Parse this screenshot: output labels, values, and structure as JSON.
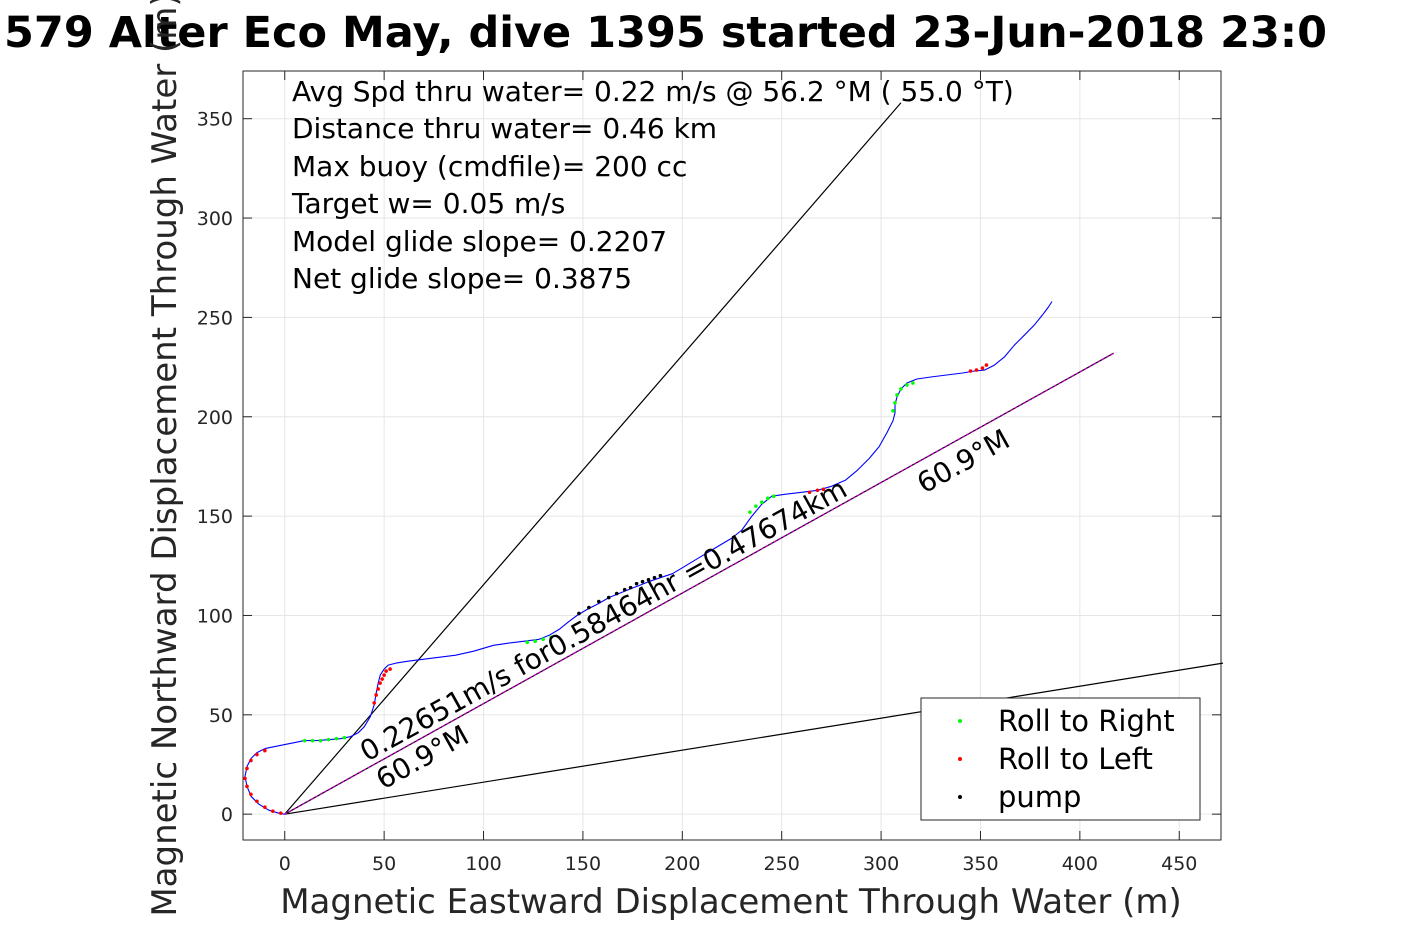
{
  "chart_data": {
    "type": "line",
    "title": "579 Alter Eco May, dive 1395 started 23-Jun-2018 23:0",
    "xlabel": "Magnetic Eastward Displacement Through Water (m)",
    "ylabel": "Magnetic Northward Displacement Through Water (m)",
    "xlim": [
      -21,
      471
    ],
    "ylim": [
      -13,
      374
    ],
    "xticks": [
      0,
      50,
      100,
      150,
      200,
      250,
      300,
      350,
      400,
      450
    ],
    "yticks": [
      0,
      50,
      100,
      150,
      200,
      250,
      300,
      350
    ],
    "grid": true,
    "legend_position": "bottom-right",
    "annotations": [
      "Avg Spd thru water=  0.22 m/s @  56.2 °M ( 55.0 °T)",
      "Distance thru water=  0.46 km",
      "Max buoy (cmdfile)= 200 cc",
      "Target w= 0.05 m/s",
      "Model glide slope= 0.2207",
      "Net glide slope= 0.3875"
    ],
    "line_labels": {
      "speed_label": "0.22651m/s for0.58464hr =0.47674km",
      "heading_label_start": "60.9°M",
      "heading_label_end": "60.9°M"
    },
    "legend": [
      {
        "label": "Roll to Right",
        "color": "#00ff00"
      },
      {
        "label": "Roll to Left",
        "color": "#ff0000"
      },
      {
        "label": "pump",
        "color": "#000000"
      }
    ],
    "reference_lines": [
      {
        "x": [
          0,
          310
        ],
        "y": [
          0,
          358
        ]
      },
      {
        "x": [
          0,
          472
        ],
        "y": [
          0,
          76
        ]
      }
    ],
    "net_track": {
      "x": [
        0,
        417
      ],
      "y": [
        0,
        232
      ],
      "color": "#c000c0"
    },
    "series": [
      {
        "color": "#0000ff",
        "x": [
          0,
          -3,
          -8,
          -13,
          -17,
          -19,
          -20,
          -19,
          -17,
          -14,
          -10,
          -5,
          0,
          5,
          10,
          16,
          22,
          28,
          33,
          37,
          40,
          43,
          45,
          46,
          47,
          48,
          50,
          52,
          56,
          62,
          70,
          78,
          86,
          95,
          105,
          112,
          120,
          128,
          133,
          138,
          143,
          147,
          152,
          158,
          163,
          168,
          173,
          178,
          183,
          189,
          195,
          200,
          205,
          210,
          215,
          220,
          225,
          230,
          235,
          240,
          245,
          252,
          260,
          268,
          275,
          282,
          288,
          294,
          299,
          303,
          306,
          307,
          307,
          308,
          310,
          313,
          318,
          325,
          333,
          341,
          347,
          352,
          357,
          362,
          367,
          372,
          377,
          381,
          384,
          386
        ],
        "y": [
          0,
          0.5,
          2,
          5,
          9,
          14,
          19,
          24,
          28,
          31,
          33,
          34,
          35,
          36,
          37,
          37,
          37.5,
          38,
          39,
          41,
          44,
          49,
          55,
          61,
          66,
          70,
          73,
          75,
          76,
          77,
          78,
          79,
          80,
          82,
          85,
          86,
          87,
          88,
          90,
          93,
          97,
          100,
          103,
          106,
          109,
          111,
          113,
          115,
          117,
          119,
          121,
          124,
          127,
          130,
          133,
          136,
          139,
          143,
          150,
          156,
          160,
          161,
          162,
          163,
          165,
          168,
          173,
          179,
          185,
          192,
          198,
          202,
          206,
          210,
          214,
          217,
          219,
          220,
          221,
          222,
          223,
          223.5,
          226,
          230,
          236,
          241,
          246,
          251,
          255,
          258
        ]
      }
    ],
    "markers": [
      {
        "name": "Roll to Right",
        "color": "#00ff00",
        "x": [
          10,
          14,
          18,
          22,
          26,
          30,
          122,
          126,
          130,
          134,
          234,
          237,
          240,
          243,
          246,
          306,
          307,
          308,
          310,
          313,
          316
        ],
        "y": [
          37,
          37,
          37,
          37.5,
          38,
          38.5,
          86.5,
          87,
          88,
          89,
          152,
          155,
          157,
          159,
          160,
          203,
          207,
          211,
          214,
          216,
          217
        ]
      },
      {
        "name": "Roll to Left",
        "color": "#ff0000",
        "x": [
          -2,
          -6,
          -10,
          -14,
          -17,
          -19,
          -20,
          -19,
          -17,
          -14,
          -10,
          45,
          46,
          47,
          48,
          49,
          50,
          51,
          53,
          264,
          268,
          271,
          345,
          348,
          351,
          353
        ],
        "y": [
          0.5,
          1.5,
          3.5,
          6.5,
          10,
          14,
          18,
          23,
          27,
          30,
          32,
          56,
          60,
          63,
          66,
          68,
          70,
          72,
          73,
          162,
          163,
          163.5,
          223,
          223.5,
          224.5,
          226
        ]
      },
      {
        "name": "pump",
        "color": "#000000",
        "x": [
          148,
          153,
          158,
          163,
          167,
          171,
          174,
          177,
          180,
          183,
          186,
          189
        ],
        "y": [
          101,
          104,
          107,
          109,
          111,
          113,
          114,
          116,
          117,
          118,
          119,
          120
        ]
      }
    ]
  }
}
